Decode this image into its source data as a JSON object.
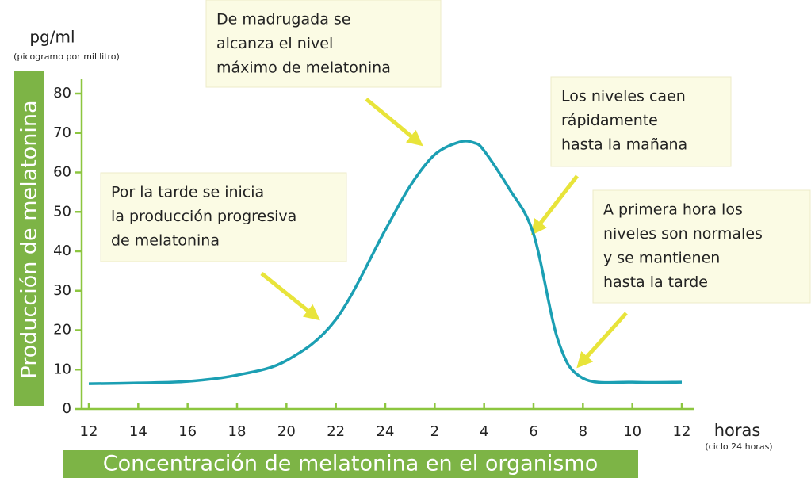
{
  "chart_data": {
    "type": "line",
    "title": "Concentración de melatonina en el organismo",
    "y_label": "Producción de melatonina",
    "y_unit": "pg/ml",
    "y_unit_note": "(picogramo por mililitro)",
    "x_label": "horas",
    "x_label_note": "(ciclo 24 horas)",
    "x": [
      12,
      14,
      16,
      18,
      20,
      22,
      24,
      25,
      26,
      27,
      27.6,
      28,
      29,
      30,
      31,
      32,
      34,
      36
    ],
    "values": [
      6.4,
      6.6,
      7.0,
      8.6,
      12.3,
      22.7,
      45.4,
      56.5,
      64.5,
      67.7,
      67.5,
      65.5,
      56,
      44.4,
      17.3,
      7.8,
      6.8,
      6.8
    ],
    "color": "#1b9fb3",
    "xlim": [
      12,
      36
    ],
    "xticks": [
      12,
      14,
      16,
      18,
      20,
      22,
      24,
      {
        "value": 26,
        "label": "2"
      },
      {
        "value": 28,
        "label": "4"
      },
      {
        "value": 30,
        "label": "6"
      },
      {
        "value": 32,
        "label": "8"
      },
      {
        "value": 34,
        "label": "10"
      },
      {
        "value": 36,
        "label": "12"
      }
    ],
    "ylim": [
      0,
      80
    ],
    "yticks": [
      0,
      10,
      20,
      30,
      40,
      50,
      60,
      70,
      80
    ],
    "grid": false,
    "annotations": [
      {
        "lines": [
          "Por la tarde se inicia",
          "la producción progresiva",
          "de melatonina"
        ]
      },
      {
        "lines": [
          "De madrugada se",
          "alcanza el nivel",
          "máximo de melatonina"
        ]
      },
      {
        "lines": [
          "Los niveles caen",
          "rápidamente",
          "hasta la mañana"
        ]
      },
      {
        "lines": [
          "A primera hora los",
          "niveles son normales",
          "y se mantienen",
          "hasta la tarde"
        ]
      }
    ]
  }
}
